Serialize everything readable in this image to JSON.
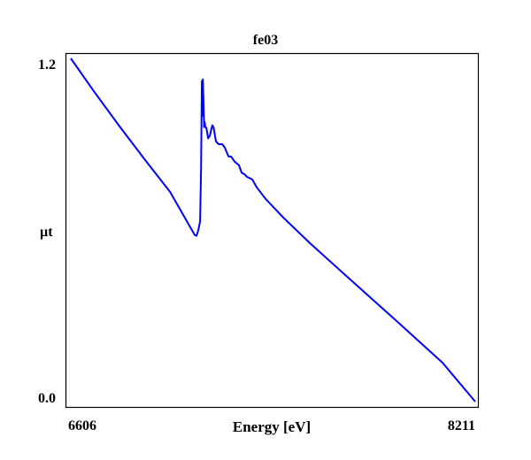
{
  "chart_data": {
    "type": "line",
    "title": "fe03",
    "xlabel": "Energy [eV]",
    "ylabel": "µt",
    "xlim": [
      6606,
      8211
    ],
    "ylim": [
      0.0,
      1.2
    ],
    "x_tick_labels": [
      "6606",
      "8211"
    ],
    "y_tick_labels": [
      "0.0",
      "1.2"
    ],
    "grid": false,
    "line_color": "#0000ff",
    "series": [
      {
        "name": "fe03",
        "x": [
          6606,
          6700,
          6800,
          6900,
          7000,
          7098,
          7105,
          7112,
          7119,
          7123,
          7126,
          7128,
          7130,
          7133,
          7135,
          7137,
          7140,
          7144,
          7151,
          7158,
          7163,
          7168,
          7172,
          7175,
          7182,
          7193,
          7207,
          7217,
          7232,
          7242,
          7256,
          7273,
          7284,
          7295,
          7305,
          7326,
          7344,
          7379,
          7449,
          7555,
          7730,
          7906,
          8081,
          8211
        ],
        "y": [
          1.2,
          1.082,
          0.962,
          0.846,
          0.733,
          0.582,
          0.58,
          0.6,
          0.63,
          0.817,
          1.12,
          1.0,
          1.127,
          1.03,
          0.96,
          0.978,
          0.96,
          0.957,
          0.92,
          0.93,
          0.95,
          0.966,
          0.96,
          0.947,
          0.91,
          0.9,
          0.9,
          0.888,
          0.857,
          0.857,
          0.839,
          0.827,
          0.8,
          0.795,
          0.786,
          0.777,
          0.749,
          0.709,
          0.644,
          0.554,
          0.415,
          0.276,
          0.136,
          0.0
        ]
      }
    ]
  }
}
